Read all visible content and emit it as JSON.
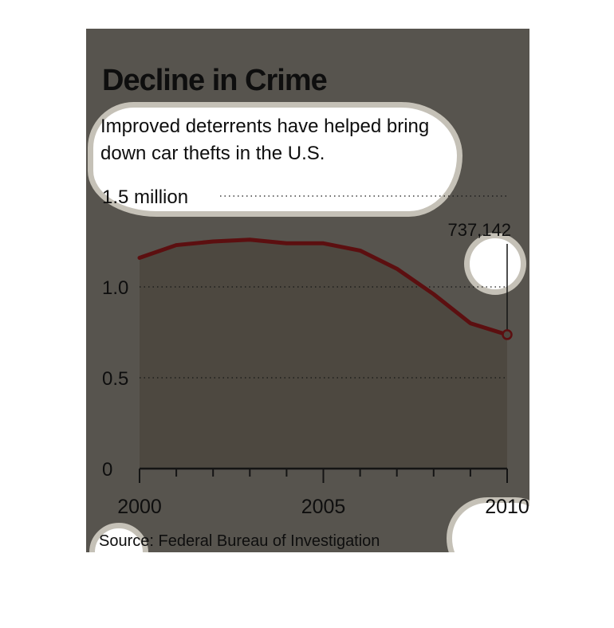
{
  "header": {
    "title": "Decline in Crime",
    "subtitle": "Improved deterrents have helped bring down car thefts in the U.S."
  },
  "source": "Source: Federal Bureau of Investigation",
  "colors": {
    "background": "#57544e",
    "area_fill": "#4d4840",
    "line": "#5c0f10",
    "text": "#0e0e0e"
  },
  "chart_data": {
    "type": "area",
    "title": "Decline in Crime",
    "subtitle": "Improved deterrents have helped bring down car thefts in the U.S.",
    "x": [
      2000,
      2001,
      2002,
      2003,
      2004,
      2005,
      2006,
      2007,
      2008,
      2009,
      2010
    ],
    "series": [
      {
        "values": [
          1.16,
          1.23,
          1.25,
          1.26,
          1.24,
          1.24,
          1.2,
          1.1,
          0.96,
          0.8,
          0.737142
        ]
      }
    ],
    "ylim": [
      0,
      1.5
    ],
    "xlim": [
      2000,
      2010
    ],
    "y_ticks": [
      "0",
      "0.5",
      "1.0",
      "1.5 million"
    ],
    "y_tick_values": [
      0,
      0.5,
      1.0,
      1.5
    ],
    "x_tick_labels": [
      "2000",
      "2005",
      "2010"
    ],
    "x_tick_values": [
      2000,
      2005,
      2010
    ],
    "annotation": {
      "x": 2010,
      "value": 0.737142,
      "label": "737,142"
    },
    "grid": true,
    "legend": "none"
  }
}
